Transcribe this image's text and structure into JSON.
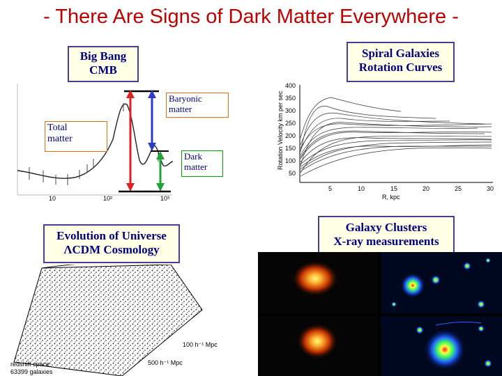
{
  "slide": {
    "title": "- There Are Signs of Dark Matter Everywhere -"
  },
  "cmb": {
    "box": "Big Bang\nCMB",
    "labels": {
      "baryonic": "Baryonic\nmatter",
      "total": "Total\nmatter",
      "dark": "Dark\nmatter"
    },
    "colors": {
      "baryonic_arrow": "#2e3bc4",
      "total_arrow": "#e02020",
      "dark_arrow": "#22a33a"
    }
  },
  "rotation": {
    "box": "Spiral Galaxies\nRotation Curves",
    "ylabel": "Rotation Velocity km per sec",
    "xlabel": "R, kpc",
    "yticks": [
      "400",
      "350",
      "300",
      "250",
      "200",
      "150",
      "100",
      "50"
    ],
    "xticks": [
      "5",
      "10",
      "15",
      "20",
      "25",
      "30"
    ]
  },
  "evolution": {
    "box": "Evolution of Universe\nΛCDM Cosmology",
    "caption1": "redshift space",
    "caption2": "63399 galaxies",
    "scale1": "100 h⁻¹ Mpc",
    "scale2": "500 h⁻¹ Mpc"
  },
  "clusters": {
    "box": "Galaxy Clusters\nX-ray measurements"
  }
}
